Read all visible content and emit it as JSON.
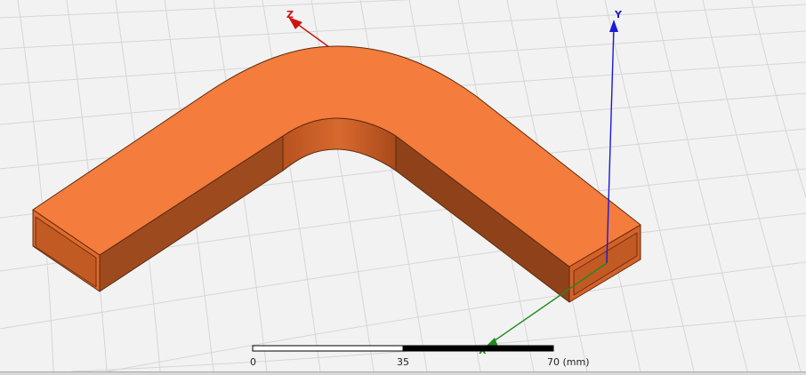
{
  "axes": {
    "x_label": "X",
    "y_label": "Y",
    "z_label": "Z"
  },
  "ruler": {
    "tick_start": "0",
    "tick_mid": "35",
    "tick_end": "70 (mm)"
  },
  "colors": {
    "background": "#f2f2f2",
    "grid": "#d6d6d6",
    "model_top": "#f47c3c",
    "model_side_light": "#e06a2c",
    "model_side_dark": "#9e4a1f",
    "model_inner_dark": "#c25a24",
    "model_edge": "#5e2b0f",
    "axis_x": "#1f8a1f",
    "axis_y": "#1a1ad9",
    "axis_z": "#cc1414"
  }
}
